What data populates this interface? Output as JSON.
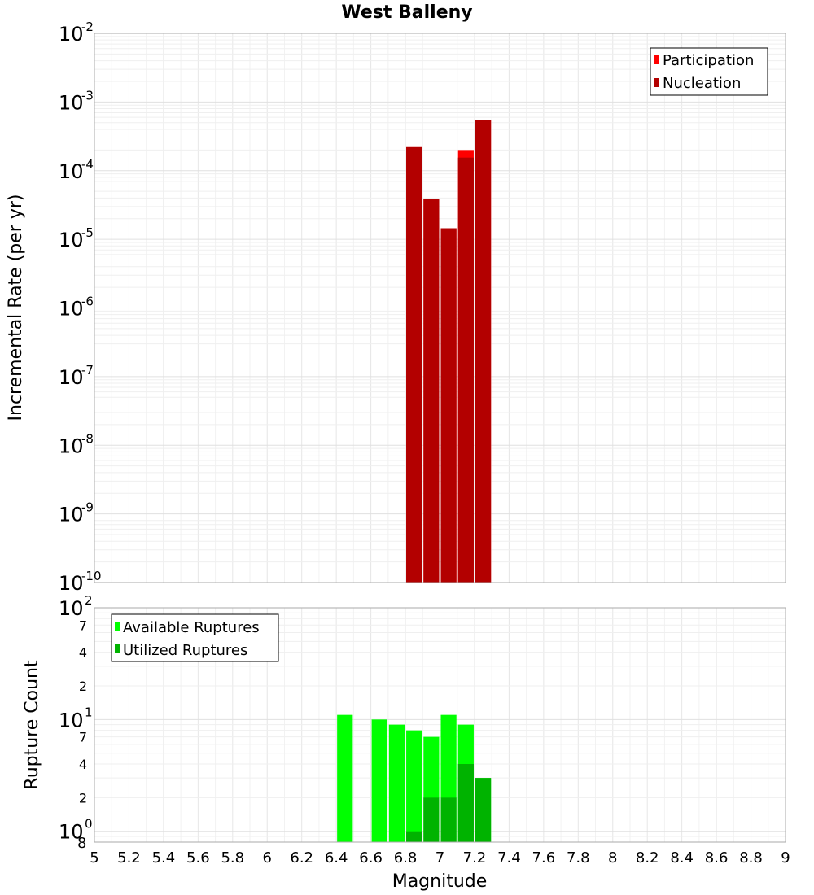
{
  "chart_data": [
    {
      "type": "bar",
      "title": "West Balleny",
      "xlabel": "",
      "ylabel": "Incremental Rate (per yr)",
      "yscale": "log",
      "ylim": [
        1e-10,
        0.01
      ],
      "xlim": [
        5,
        9
      ],
      "x": [
        6.85,
        6.95,
        7.05,
        7.15,
        7.25
      ],
      "series": [
        {
          "name": "Participation",
          "color": "#ff0000",
          "values": [
            0.00022,
            3.9e-05,
            1.45e-05,
            0.0002,
            0.00054
          ]
        },
        {
          "name": "Nucleation",
          "color": "#b30000",
          "values": [
            0.00022,
            3.9e-05,
            1.45e-05,
            0.000155,
            0.00054
          ]
        }
      ],
      "legend": "top-right",
      "grid": true,
      "y_tick_exponents": [
        "-10",
        "-9",
        "-8",
        "-7",
        "-6",
        "-5",
        "-4",
        "-3",
        "-2"
      ]
    },
    {
      "type": "bar",
      "title": "",
      "xlabel": "Magnitude",
      "ylabel": "Rupture Count",
      "yscale": "log",
      "ylim": [
        0.8,
        100
      ],
      "xlim": [
        5,
        9
      ],
      "x": [
        6.45,
        6.65,
        6.75,
        6.85,
        6.95,
        7.05,
        7.15,
        7.25
      ],
      "series": [
        {
          "name": "Available Ruptures",
          "color": "#00ff00",
          "values": [
            11,
            10,
            9,
            8,
            7,
            11,
            9,
            3
          ]
        },
        {
          "name": "Utilized Ruptures",
          "color": "#00b300",
          "values": [
            0,
            0,
            0,
            1,
            2,
            2,
            4,
            3
          ]
        }
      ],
      "legend": "top-left",
      "grid": true,
      "x_ticks": [
        "5",
        "5.2",
        "5.4",
        "5.6",
        "5.8",
        "6",
        "6.2",
        "6.4",
        "6.6",
        "6.8",
        "7",
        "7.2",
        "7.4",
        "7.6",
        "7.8",
        "8",
        "8.2",
        "8.4",
        "8.6",
        "8.8",
        "9"
      ],
      "y_minor_labels": [
        "2",
        "4",
        "7"
      ],
      "y_tick_bases": [
        "10",
        "10",
        "10"
      ],
      "y_tick_exponents": [
        "0",
        "1",
        "2"
      ],
      "y_bottom_label": "8"
    }
  ]
}
